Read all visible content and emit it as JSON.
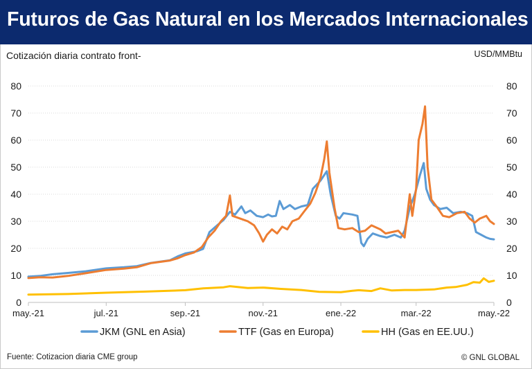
{
  "header": {
    "title": "Futuros de Gas Natural en los Mercados Internacionales",
    "subtitle": "Cotización diaria contrato front-",
    "unit": "USD/MMBtu"
  },
  "footer": {
    "source": "Fuente: Cotizacion diaria CME group",
    "credit": "© GNL GLOBAL"
  },
  "chart_data": {
    "type": "line",
    "title": "Futuros de Gas Natural en los Mercados Internacionales",
    "ylabel": "USD/MMBtu",
    "ylim": [
      0,
      80
    ],
    "yticks": [
      0,
      10,
      20,
      30,
      40,
      50,
      60,
      70,
      80
    ],
    "yticks_right": [
      0,
      10,
      20,
      30,
      40,
      50,
      60,
      70,
      80
    ],
    "x_range": [
      "2021-05-01",
      "2022-05-01"
    ],
    "xticks": [
      {
        "date": "2021-05-01",
        "label": "may.-21"
      },
      {
        "date": "2021-07-01",
        "label": "jul.-21"
      },
      {
        "date": "2021-09-01",
        "label": "sep.-21"
      },
      {
        "date": "2021-11-01",
        "label": "nov.-21"
      },
      {
        "date": "2022-01-01",
        "label": "ene.-22"
      },
      {
        "date": "2022-03-01",
        "label": "mar.-22"
      },
      {
        "date": "2022-05-01",
        "label": "may.-22"
      }
    ],
    "grid": true,
    "legend_position": "bottom",
    "series": [
      {
        "name": "JKM (GNL en Asia)",
        "color": "#5b9bd5",
        "points": [
          [
            "2021-05-01",
            9.5
          ],
          [
            "2021-05-10",
            9.8
          ],
          [
            "2021-05-20",
            10.4
          ],
          [
            "2021-06-01",
            10.9
          ],
          [
            "2021-06-15",
            11.5
          ],
          [
            "2021-07-01",
            12.6
          ],
          [
            "2021-07-15",
            13.0
          ],
          [
            "2021-07-25",
            13.4
          ],
          [
            "2021-08-05",
            14.6
          ],
          [
            "2021-08-20",
            15.6
          ],
          [
            "2021-08-26",
            17.0
          ],
          [
            "2021-09-01",
            18.1
          ],
          [
            "2021-09-10",
            18.9
          ],
          [
            "2021-09-15",
            19.8
          ],
          [
            "2021-09-20",
            26.0
          ],
          [
            "2021-09-26",
            28.5
          ],
          [
            "2021-10-01",
            30.5
          ],
          [
            "2021-10-06",
            33.5
          ],
          [
            "2021-10-10",
            32.5
          ],
          [
            "2021-10-15",
            35.5
          ],
          [
            "2021-10-18",
            33.0
          ],
          [
            "2021-10-22",
            34.0
          ],
          [
            "2021-10-27",
            32.0
          ],
          [
            "2021-11-01",
            31.5
          ],
          [
            "2021-11-05",
            32.5
          ],
          [
            "2021-11-08",
            31.8
          ],
          [
            "2021-11-11",
            32.0
          ],
          [
            "2021-11-14",
            37.5
          ],
          [
            "2021-11-17",
            34.5
          ],
          [
            "2021-11-22",
            36.0
          ],
          [
            "2021-11-26",
            34.5
          ],
          [
            "2021-12-01",
            35.5
          ],
          [
            "2021-12-06",
            36.0
          ],
          [
            "2021-12-10",
            42.0
          ],
          [
            "2021-12-16",
            45.0
          ],
          [
            "2021-12-21",
            48.5
          ],
          [
            "2021-12-24",
            40.0
          ],
          [
            "2021-12-28",
            32.0
          ],
          [
            "2021-12-31",
            31.0
          ],
          [
            "2022-01-03",
            33.0
          ],
          [
            "2022-01-10",
            32.5
          ],
          [
            "2022-01-14",
            32.0
          ],
          [
            "2022-01-17",
            22.0
          ],
          [
            "2022-01-19",
            20.8
          ],
          [
            "2022-01-22",
            23.5
          ],
          [
            "2022-01-26",
            25.5
          ],
          [
            "2022-02-01",
            24.5
          ],
          [
            "2022-02-06",
            24.0
          ],
          [
            "2022-02-12",
            25.0
          ],
          [
            "2022-02-17",
            24.0
          ],
          [
            "2022-02-20",
            26.5
          ],
          [
            "2022-02-24",
            35.0
          ],
          [
            "2022-02-28",
            40.0
          ],
          [
            "2022-03-04",
            47.0
          ],
          [
            "2022-03-07",
            51.5
          ],
          [
            "2022-03-09",
            42.0
          ],
          [
            "2022-03-12",
            38.0
          ],
          [
            "2022-03-15",
            36.0
          ],
          [
            "2022-03-20",
            34.5
          ],
          [
            "2022-03-25",
            35.0
          ],
          [
            "2022-03-30",
            33.0
          ],
          [
            "2022-04-05",
            33.5
          ],
          [
            "2022-04-10",
            33.0
          ],
          [
            "2022-04-14",
            32.0
          ],
          [
            "2022-04-17",
            26.0
          ],
          [
            "2022-04-21",
            25.0
          ],
          [
            "2022-04-25",
            24.0
          ],
          [
            "2022-04-28",
            23.5
          ],
          [
            "2022-05-01",
            23.3
          ]
        ]
      },
      {
        "name": "TTF (Gas en Europa)",
        "color": "#ed7d31",
        "points": [
          [
            "2021-05-01",
            9.0
          ],
          [
            "2021-05-10",
            9.3
          ],
          [
            "2021-05-20",
            9.2
          ],
          [
            "2021-06-01",
            9.8
          ],
          [
            "2021-06-15",
            10.8
          ],
          [
            "2021-07-01",
            12.0
          ],
          [
            "2021-07-15",
            12.5
          ],
          [
            "2021-07-25",
            13.0
          ],
          [
            "2021-08-05",
            14.5
          ],
          [
            "2021-08-20",
            15.5
          ],
          [
            "2021-08-26",
            16.3
          ],
          [
            "2021-09-01",
            17.5
          ],
          [
            "2021-09-08",
            18.5
          ],
          [
            "2021-09-14",
            20.5
          ],
          [
            "2021-09-19",
            24.0
          ],
          [
            "2021-09-24",
            26.5
          ],
          [
            "2021-09-29",
            30.0
          ],
          [
            "2021-10-03",
            32.0
          ],
          [
            "2021-10-06",
            39.5
          ],
          [
            "2021-10-08",
            32.0
          ],
          [
            "2021-10-14",
            31.0
          ],
          [
            "2021-10-20",
            30.0
          ],
          [
            "2021-10-25",
            28.5
          ],
          [
            "2021-10-29",
            25.5
          ],
          [
            "2021-11-01",
            22.5
          ],
          [
            "2021-11-04",
            25.0
          ],
          [
            "2021-11-08",
            27.0
          ],
          [
            "2021-11-12",
            25.5
          ],
          [
            "2021-11-16",
            28.0
          ],
          [
            "2021-11-20",
            27.0
          ],
          [
            "2021-11-24",
            30.0
          ],
          [
            "2021-11-29",
            31.0
          ],
          [
            "2021-12-03",
            33.5
          ],
          [
            "2021-12-08",
            36.5
          ],
          [
            "2021-12-12",
            40.5
          ],
          [
            "2021-12-16",
            46.0
          ],
          [
            "2021-12-19",
            53.0
          ],
          [
            "2021-12-21",
            59.5
          ],
          [
            "2021-12-23",
            48.0
          ],
          [
            "2021-12-27",
            35.0
          ],
          [
            "2021-12-30",
            27.5
          ],
          [
            "2022-01-04",
            27.0
          ],
          [
            "2022-01-10",
            27.5
          ],
          [
            "2022-01-15",
            26.0
          ],
          [
            "2022-01-20",
            26.5
          ],
          [
            "2022-01-25",
            28.5
          ],
          [
            "2022-02-01",
            27.0
          ],
          [
            "2022-02-05",
            25.5
          ],
          [
            "2022-02-10",
            26.0
          ],
          [
            "2022-02-15",
            26.5
          ],
          [
            "2022-02-20",
            24.0
          ],
          [
            "2022-02-24",
            40.0
          ],
          [
            "2022-02-26",
            32.0
          ],
          [
            "2022-03-01",
            42.0
          ],
          [
            "2022-03-03",
            60.0
          ],
          [
            "2022-03-06",
            66.0
          ],
          [
            "2022-03-08",
            72.5
          ],
          [
            "2022-03-10",
            50.0
          ],
          [
            "2022-03-13",
            38.0
          ],
          [
            "2022-03-17",
            35.5
          ],
          [
            "2022-03-22",
            32.0
          ],
          [
            "2022-03-27",
            31.5
          ],
          [
            "2022-04-02",
            33.0
          ],
          [
            "2022-04-08",
            33.5
          ],
          [
            "2022-04-12",
            31.0
          ],
          [
            "2022-04-16",
            29.5
          ],
          [
            "2022-04-20",
            31.0
          ],
          [
            "2022-04-25",
            32.0
          ],
          [
            "2022-04-28",
            30.0
          ],
          [
            "2022-05-01",
            29.0
          ]
        ]
      },
      {
        "name": "HH (Gas en EE.UU.)",
        "color": "#ffc000",
        "points": [
          [
            "2021-05-01",
            2.9
          ],
          [
            "2021-06-01",
            3.1
          ],
          [
            "2021-07-01",
            3.6
          ],
          [
            "2021-08-01",
            4.0
          ],
          [
            "2021-09-01",
            4.5
          ],
          [
            "2021-09-15",
            5.2
          ],
          [
            "2021-10-01",
            5.6
          ],
          [
            "2021-10-06",
            6.0
          ],
          [
            "2021-10-20",
            5.3
          ],
          [
            "2021-11-01",
            5.5
          ],
          [
            "2021-11-15",
            5.0
          ],
          [
            "2021-12-01",
            4.6
          ],
          [
            "2021-12-15",
            3.9
          ],
          [
            "2022-01-01",
            3.8
          ],
          [
            "2022-01-10",
            4.3
          ],
          [
            "2022-01-15",
            4.5
          ],
          [
            "2022-01-25",
            4.2
          ],
          [
            "2022-02-01",
            5.2
          ],
          [
            "2022-02-10",
            4.4
          ],
          [
            "2022-02-20",
            4.6
          ],
          [
            "2022-03-01",
            4.6
          ],
          [
            "2022-03-15",
            4.8
          ],
          [
            "2022-03-25",
            5.5
          ],
          [
            "2022-04-01",
            5.7
          ],
          [
            "2022-04-10",
            6.5
          ],
          [
            "2022-04-15",
            7.5
          ],
          [
            "2022-04-20",
            7.3
          ],
          [
            "2022-04-23",
            8.9
          ],
          [
            "2022-04-27",
            7.6
          ],
          [
            "2022-05-01",
            8.0
          ]
        ]
      }
    ]
  }
}
